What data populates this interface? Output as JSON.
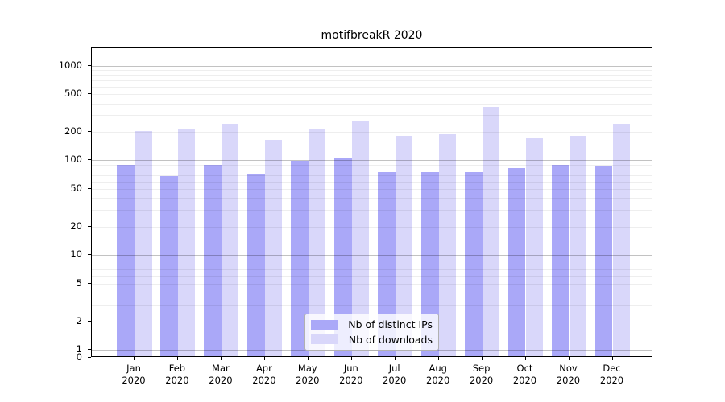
{
  "chart_data": {
    "type": "bar",
    "title": "motifbreakR 2020",
    "categories": [
      "Jan",
      "Feb",
      "Mar",
      "Apr",
      "May",
      "Jun",
      "Jul",
      "Aug",
      "Sep",
      "Oct",
      "Nov",
      "Dec"
    ],
    "category_year": "2020",
    "series": [
      {
        "name": "Nb of distinct IPs",
        "color": "#aaa8f8",
        "values": [
          87,
          66,
          86,
          70,
          95,
          101,
          72,
          73,
          73,
          80,
          86,
          83
        ]
      },
      {
        "name": "Nb of downloads",
        "color": "#d9d7fa",
        "values": [
          196,
          202,
          236,
          157,
          209,
          252,
          175,
          182,
          350,
          163,
          175,
          233
        ]
      }
    ],
    "yscale": "log",
    "y_ticks": [
      1000,
      500,
      200,
      100,
      50,
      20,
      10,
      5,
      2,
      1,
      0
    ],
    "ylim_top": 1500,
    "grid": "horizontal, minor and major log gridlines drawn over bars",
    "legend_position": "lower center, inside plot",
    "xlabel": "",
    "ylabel": ""
  },
  "legend": {
    "items": [
      {
        "label": "Nb of distinct IPs",
        "color": "#aaa8f8"
      },
      {
        "label": "Nb of downloads",
        "color": "#d9d7fa"
      }
    ]
  },
  "colors": {
    "distinct_ips_bar": "#aaa8f8",
    "downloads_bar": "#d9d7fa",
    "axis_border": "#000000",
    "legend_border": "#b0b0b0"
  }
}
